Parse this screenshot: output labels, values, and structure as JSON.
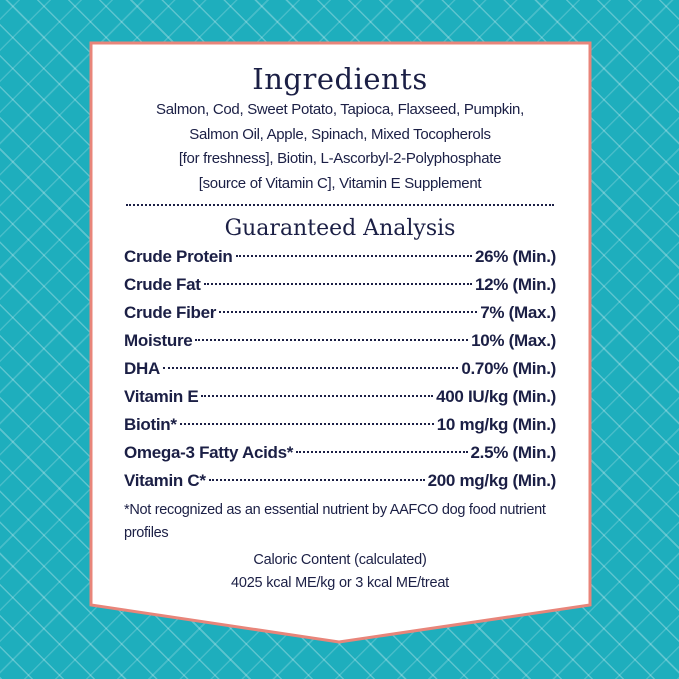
{
  "colors": {
    "background": "#1eaebd",
    "border": "#e8857a",
    "text": "#1b1f45"
  },
  "ingredients": {
    "title": "Ingredients",
    "lines": [
      "Salmon, Cod, Sweet Potato, Tapioca, Flaxseed, Pumpkin,",
      "Salmon Oil, Apple, Spinach, Mixed Tocopherols",
      "[for freshness], Biotin, L-Ascorbyl-2-Polyphosphate",
      "[source of Vitamin C], Vitamin E Supplement"
    ]
  },
  "analysis": {
    "title": "Guaranteed Analysis",
    "rows": [
      {
        "name": "Crude Protein",
        "value": "26% (Min.)"
      },
      {
        "name": "Crude Fat",
        "value": "12% (Min.)"
      },
      {
        "name": "Crude Fiber",
        "value": "7% (Max.)"
      },
      {
        "name": "Moisture",
        "value": "10% (Max.)"
      },
      {
        "name": "DHA",
        "value": "0.70% (Min.)"
      },
      {
        "name": "Vitamin E",
        "value": "400 IU/kg (Min.)"
      },
      {
        "name": "Biotin*",
        "value": "10 mg/kg (Min.)"
      },
      {
        "name": "Omega-3 Fatty Acids*",
        "value": "2.5% (Min.)"
      },
      {
        "name": "Vitamin C*",
        "value": "200 mg/kg (Min.)"
      }
    ],
    "footnote": "*Not recognized as an essential nutrient by AAFCO dog food nutrient profiles"
  },
  "caloric": {
    "title": "Caloric Content (calculated)",
    "value": "4025 kcal ME/kg or 3 kcal ME/treat"
  }
}
